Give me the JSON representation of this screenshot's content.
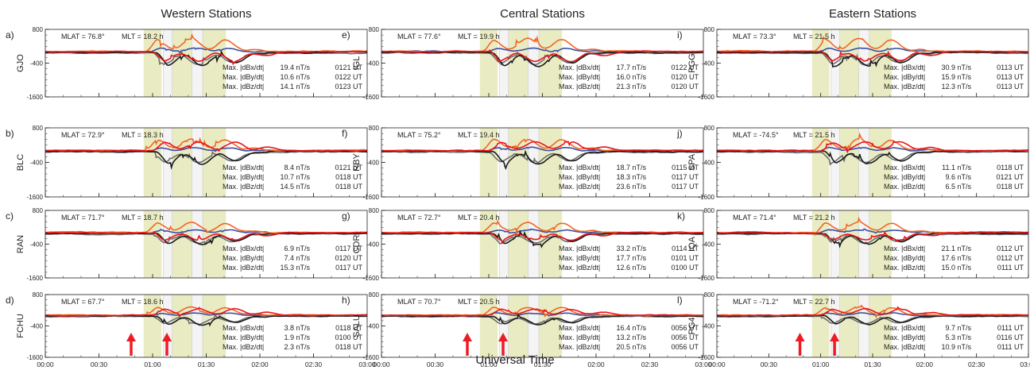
{
  "colors": {
    "dBx": "#1a1a1a",
    "dBy": "#f26522",
    "dBz": "#e8141b",
    "dBh": "#3b4ea3",
    "dBgray": "#6d6e71",
    "band": "#e9ecc2",
    "arrow": "#ed1c24"
  },
  "xlabel": "Universal Time",
  "xticks": [
    "00:00",
    "00:30",
    "01:00",
    "01:30",
    "02:00",
    "02:30",
    "03:00"
  ],
  "ytick_labels": [
    "800",
    "-400",
    "-1600"
  ],
  "columns": [
    {
      "title": "Western Stations",
      "panels": [
        {
          "label": "a)",
          "station": "GJO",
          "mlat": "MLAT = 76.8°",
          "mlt": "MLT = 18.2 h",
          "stats": [
            [
              "Max. |dBx/dt|",
              "19.4 nT/s",
              "0121 UT"
            ],
            [
              "Max. |dBy/dt|",
              "10.6 nT/s",
              "0122 UT"
            ],
            [
              "Max. |dBz/dt|",
              "14.1 nT/s",
              "0123 UT"
            ]
          ]
        },
        {
          "label": "b)",
          "station": "BLC",
          "mlat": "MLAT = 72.9°",
          "mlt": "MLT = 18.3 h",
          "stats": [
            [
              "Max. |dBx/dt|",
              "8.4 nT/s",
              "0121 UT"
            ],
            [
              "Max. |dBy/dt|",
              "10.7 nT/s",
              "0118 UT"
            ],
            [
              "Max. |dBz/dt|",
              "14.5 nT/s",
              "0118 UT"
            ]
          ]
        },
        {
          "label": "c)",
          "station": "RAN",
          "mlat": "MLAT = 71.7°",
          "mlt": "MLT = 18.7 h",
          "stats": [
            [
              "Max. |dBx/dt|",
              "6.9 nT/s",
              "0117 UT"
            ],
            [
              "Max. |dBy/dt|",
              "7.4 nT/s",
              "0120 UT"
            ],
            [
              "Max. |dBz/dt|",
              "15.3 nT/s",
              "0117 UT"
            ]
          ]
        },
        {
          "label": "d)",
          "station": "FCHU",
          "mlat": "MLAT = 67.7°",
          "mlt": "MLT = 18.6 h",
          "arrows": true,
          "stats": [
            [
              "Max. |dBx/dt|",
              "3.8 nT/s",
              "0118 UT"
            ],
            [
              "Max. |dBy/dt|",
              "1.9 nT/s",
              "0100 UT"
            ],
            [
              "Max. |dBz/dt|",
              "2.3 nT/s",
              "0118 UT"
            ]
          ]
        }
      ]
    },
    {
      "title": "Central Stations",
      "panels": [
        {
          "label": "e)",
          "station": "IGL",
          "mlat": "MLAT = 77.6°",
          "mlt": "MLT = 19.9 h",
          "stats": [
            [
              "Max. |dBx/dt|",
              "17.7 nT/s",
              "0122 UT"
            ],
            [
              "Max. |dBy/dt|",
              "16.0 nT/s",
              "0120 UT"
            ],
            [
              "Max. |dBz/dt|",
              "21.3 nT/s",
              "0120 UT"
            ]
          ]
        },
        {
          "label": "f)",
          "station": "RBY",
          "mlat": "MLAT = 75.2°",
          "mlt": "MLT = 19.4 h",
          "stats": [
            [
              "Max. |dBx/dt|",
              "18.7 nT/s",
              "0115 UT"
            ],
            [
              "Max. |dBy/dt|",
              "18.3 nT/s",
              "0117 UT"
            ],
            [
              "Max. |dBz/dt|",
              "23.6 nT/s",
              "0117 UT"
            ]
          ]
        },
        {
          "label": "g)",
          "station": "CDR",
          "mlat": "MLAT = 72.7°",
          "mlt": "MLT = 20.4 h",
          "stats": [
            [
              "Max. |dBx/dt|",
              "33.2 nT/s",
              "0114 UT"
            ],
            [
              "Max. |dBy/dt|",
              "17.7 nT/s",
              "0101 UT"
            ],
            [
              "Max. |dBz/dt|",
              "12.6 nT/s",
              "0100 UT"
            ]
          ]
        },
        {
          "label": "h)",
          "station": "SALU",
          "mlat": "MLAT = 70.7°",
          "mlt": "MLT = 20.5 h",
          "arrows": true,
          "stats": [
            [
              "Max. |dBx/dt|",
              "16.4 nT/s",
              "0056 UT"
            ],
            [
              "Max. |dBy/dt|",
              "13.2 nT/s",
              "0056 UT"
            ],
            [
              "Max. |dBz/dt|",
              "20.5 nT/s",
              "0056 UT"
            ]
          ]
        }
      ]
    },
    {
      "title": "Eastern Stations",
      "panels": [
        {
          "label": "i)",
          "station": "PGG",
          "mlat": "MLAT = 73.3°",
          "mlt": "MLT = 21.5 h",
          "stats": [
            [
              "Max. |dBx/dt|",
              "30.9 nT/s",
              "0113 UT"
            ],
            [
              "Max. |dBy/dt|",
              "15.9 nT/s",
              "0113 UT"
            ],
            [
              "Max. |dBz/dt|",
              "12.3 nT/s",
              "0113 UT"
            ]
          ]
        },
        {
          "label": "j)",
          "station": "SPA",
          "mlat": "MLAT = -74.5°",
          "mlt": "MLT = 21.5 h",
          "stats": [
            [
              "Max. |dBx/dt|",
              "11.1 nT/s",
              "0118 UT"
            ],
            [
              "Max. |dBy/dt|",
              "9.6 nT/s",
              "0121 UT"
            ],
            [
              "Max. |dBz/dt|",
              "6.5 nT/s",
              "0118 UT"
            ]
          ]
        },
        {
          "label": "k)",
          "station": "IQA",
          "mlat": "MLAT = 71.4°",
          "mlt": "MLT = 21.2 h",
          "stats": [
            [
              "Max. |dBx/dt|",
              "21.1 nT/s",
              "0112 UT"
            ],
            [
              "Max. |dBy/dt|",
              "17.6 nT/s",
              "0112 UT"
            ],
            [
              "Max. |dBz/dt|",
              "15.0 nT/s",
              "0111 UT"
            ]
          ]
        },
        {
          "label": "l)",
          "station": "PG4",
          "mlat": "MLAT = -71.2°",
          "mlt": "MLT = 22.7 h",
          "arrows": true,
          "stats": [
            [
              "Max. |dBx/dt|",
              "9.7 nT/s",
              "0111 UT"
            ],
            [
              "Max. |dBy/dt|",
              "5.3 nT/s",
              "0116 UT"
            ],
            [
              "Max. |dBz/dt|",
              "10.9 nT/s",
              "0111 UT"
            ]
          ]
        }
      ]
    }
  ],
  "chart_data": {
    "type": "line",
    "x_units": "minutes after 00:00 UT",
    "xlim": [
      0,
      180
    ],
    "ylim": [
      -1600,
      800
    ],
    "yticks": [
      800,
      -400,
      -1600
    ],
    "grid": false,
    "shaded_intervals_min": [
      [
        55,
        65
      ],
      [
        71,
        82
      ],
      [
        88,
        101
      ]
    ],
    "interval_markers_min": [
      [
        66,
        71
      ],
      [
        82,
        88
      ]
    ],
    "arrow_times_min": [
      48,
      68
    ]
  }
}
